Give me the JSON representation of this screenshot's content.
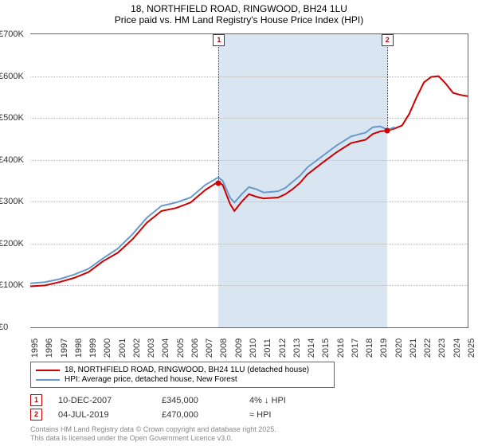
{
  "title_line1": "18, NORTHFIELD ROAD, RINGWOOD, BH24 1LU",
  "title_line2": "Price paid vs. HM Land Registry's House Price Index (HPI)",
  "chart": {
    "type": "line",
    "background_color": "#ffffff",
    "shaded_bg_color": "#d9e6f2",
    "grid_color": "#bbbbbb",
    "x_year_min": 1995,
    "x_year_max": 2025,
    "x_ticks": [
      1995,
      1996,
      1997,
      1998,
      1999,
      2000,
      2001,
      2002,
      2003,
      2004,
      2005,
      2006,
      2007,
      2008,
      2009,
      2010,
      2011,
      2012,
      2013,
      2014,
      2015,
      2016,
      2017,
      2018,
      2019,
      2020,
      2021,
      2022,
      2023,
      2024,
      2025
    ],
    "y_min": 0,
    "y_max": 700000,
    "y_ticks": [
      0,
      100000,
      200000,
      300000,
      400000,
      500000,
      600000,
      700000
    ],
    "y_tick_labels": [
      "£0",
      "£100K",
      "£200K",
      "£300K",
      "£400K",
      "£500K",
      "£600K",
      "£700K"
    ],
    "series": [
      {
        "name": "18, NORTHFIELD ROAD, RINGWOOD, BH24 1LU (detached house)",
        "color": "#cc0000",
        "width": 2,
        "data": [
          [
            1995,
            98000
          ],
          [
            1996,
            100000
          ],
          [
            1997,
            108000
          ],
          [
            1998,
            118000
          ],
          [
            1999,
            132000
          ],
          [
            2000,
            158000
          ],
          [
            2001,
            178000
          ],
          [
            2002,
            210000
          ],
          [
            2003,
            250000
          ],
          [
            2004,
            278000
          ],
          [
            2005,
            285000
          ],
          [
            2006,
            298000
          ],
          [
            2007,
            328000
          ],
          [
            2007.9,
            348000
          ],
          [
            2008.2,
            340000
          ],
          [
            2008.7,
            295000
          ],
          [
            2009,
            278000
          ],
          [
            2009.5,
            300000
          ],
          [
            2010,
            318000
          ],
          [
            2010.5,
            312000
          ],
          [
            2011,
            308000
          ],
          [
            2012,
            310000
          ],
          [
            2012.5,
            318000
          ],
          [
            2013,
            330000
          ],
          [
            2013.5,
            345000
          ],
          [
            2014,
            365000
          ],
          [
            2015,
            392000
          ],
          [
            2016,
            418000
          ],
          [
            2017,
            440000
          ],
          [
            2018,
            448000
          ],
          [
            2018.5,
            462000
          ],
          [
            2019,
            468000
          ],
          [
            2019.5,
            470000
          ],
          [
            2020,
            475000
          ],
          [
            2020.5,
            482000
          ],
          [
            2021,
            510000
          ],
          [
            2021.5,
            550000
          ],
          [
            2022,
            585000
          ],
          [
            2022.5,
            598000
          ],
          [
            2023,
            600000
          ],
          [
            2023.5,
            582000
          ],
          [
            2024,
            560000
          ],
          [
            2024.5,
            555000
          ],
          [
            2025,
            552000
          ]
        ]
      },
      {
        "name": "HPI: Average price, detached house, New Forest",
        "color": "#6699cc",
        "width": 2,
        "data": [
          [
            1995,
            105000
          ],
          [
            1996,
            108000
          ],
          [
            1997,
            115000
          ],
          [
            1998,
            126000
          ],
          [
            1999,
            140000
          ],
          [
            2000,
            165000
          ],
          [
            2001,
            188000
          ],
          [
            2002,
            222000
          ],
          [
            2003,
            262000
          ],
          [
            2004,
            290000
          ],
          [
            2005,
            298000
          ],
          [
            2006,
            310000
          ],
          [
            2007,
            340000
          ],
          [
            2007.9,
            358000
          ],
          [
            2008.2,
            350000
          ],
          [
            2008.7,
            310000
          ],
          [
            2009,
            298000
          ],
          [
            2009.5,
            318000
          ],
          [
            2010,
            335000
          ],
          [
            2010.5,
            330000
          ],
          [
            2011,
            322000
          ],
          [
            2012,
            325000
          ],
          [
            2012.5,
            333000
          ],
          [
            2013,
            348000
          ],
          [
            2013.5,
            362000
          ],
          [
            2014,
            382000
          ],
          [
            2015,
            408000
          ],
          [
            2016,
            434000
          ],
          [
            2017,
            456000
          ],
          [
            2018,
            465000
          ],
          [
            2018.5,
            478000
          ],
          [
            2019,
            480000
          ],
          [
            2019.5,
            472000
          ],
          [
            2020,
            478000
          ]
        ]
      }
    ],
    "shaded_ranges": [
      {
        "from": 2007.94,
        "to": 2019.51
      }
    ],
    "markers": [
      {
        "n": "1",
        "year": 2007.94,
        "value": 345000
      },
      {
        "n": "2",
        "year": 2019.51,
        "value": 470000
      }
    ]
  },
  "legend": {
    "items": [
      {
        "label": "18, NORTHFIELD ROAD, RINGWOOD, BH24 1LU (detached house)",
        "color": "#cc0000"
      },
      {
        "label": "HPI: Average price, detached house, New Forest",
        "color": "#6699cc"
      }
    ]
  },
  "annotations": [
    {
      "n": "1",
      "date": "10-DEC-2007",
      "price": "£345,000",
      "note": "4% ↓ HPI"
    },
    {
      "n": "2",
      "date": "04-JUL-2019",
      "price": "£470,000",
      "note": "≈ HPI"
    }
  ],
  "footer_line1": "Contains HM Land Registry data © Crown copyright and database right 2025.",
  "footer_line2": "This data is licensed under the Open Government Licence v3.0."
}
